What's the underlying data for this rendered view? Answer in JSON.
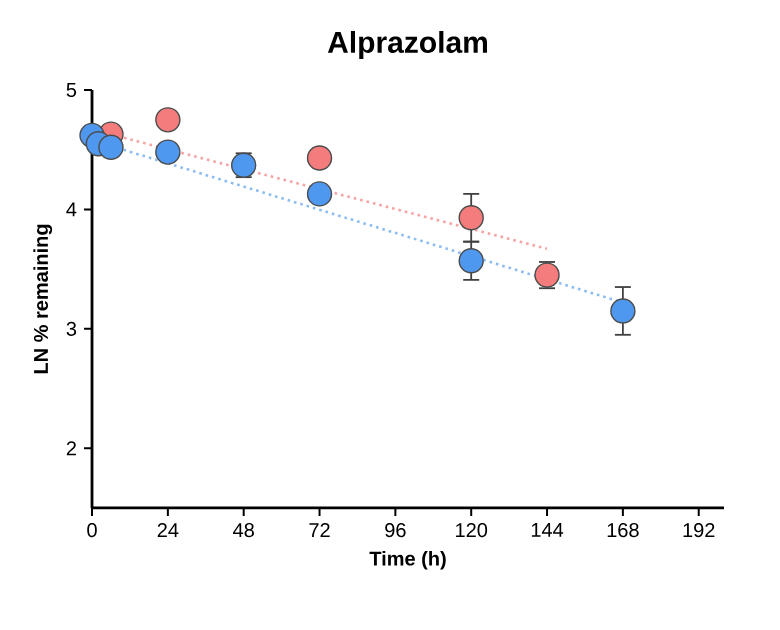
{
  "chart_data": {
    "type": "scatter",
    "title": "Alprazolam",
    "xlabel": "Time (h)",
    "ylabel": "LN % remaining",
    "xlim": [
      0,
      200
    ],
    "xticks": [
      0,
      24,
      48,
      72,
      96,
      120,
      144,
      168,
      192
    ],
    "ylim": [
      1.5,
      5
    ],
    "yticks": [
      2,
      3,
      4,
      5
    ],
    "grid": false,
    "series": [
      {
        "type": "line",
        "color": "#f5a3a3",
        "line_style": "dotted",
        "marker": "none",
        "x": [
          0,
          144
        ],
        "values": [
          4.67,
          3.67
        ]
      },
      {
        "type": "line",
        "color": "#8cbcf0",
        "line_style": "dotted",
        "marker": "none",
        "x": [
          0,
          168
        ],
        "values": [
          4.58,
          3.22
        ]
      },
      {
        "color": "#f47c7c",
        "marker": "circle",
        "x": [
          6,
          24,
          72,
          120,
          144
        ],
        "values": [
          4.63,
          4.75,
          4.43,
          3.93,
          3.45
        ],
        "errors": [
          null,
          null,
          null,
          0.2,
          0.11
        ]
      },
      {
        "color": "#4f98f0",
        "marker": "circle",
        "x": [
          0,
          2,
          6,
          24,
          48,
          72,
          120,
          168
        ],
        "values": [
          4.62,
          4.55,
          4.52,
          4.48,
          4.37,
          4.13,
          3.57,
          3.15
        ],
        "errors": [
          null,
          null,
          null,
          0.07,
          0.1,
          null,
          0.16,
          0.2
        ]
      }
    ]
  }
}
